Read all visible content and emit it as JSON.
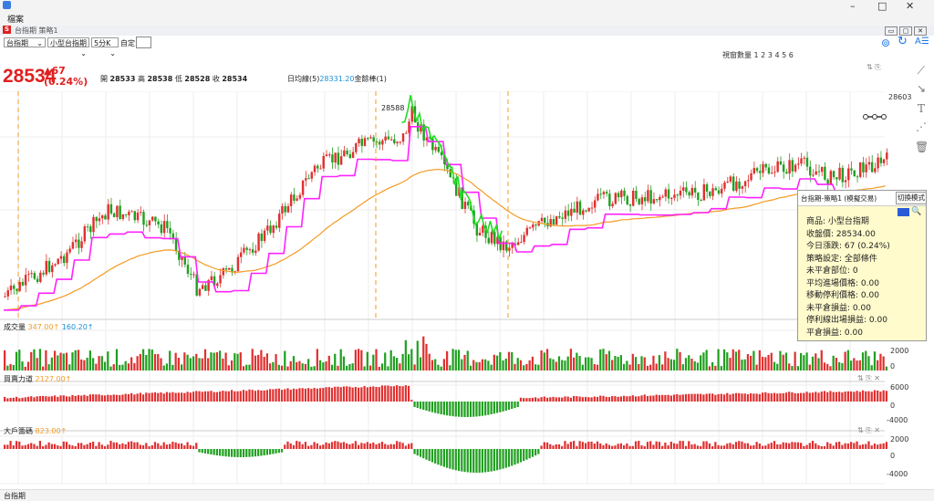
{
  "window": {
    "menu_label": "檔案",
    "doc_title": "台指期 策略1",
    "minimize": "–",
    "maximize": "□",
    "close": "✕"
  },
  "toolbar": {
    "product_select": "台指期",
    "contract_select": "小型台指期",
    "period_select": "5分K",
    "custom_label": "自定:",
    "window_count_label": "視窗數量 1 2 3 4 5 6"
  },
  "quote": {
    "last": "28534",
    "change": "▲67",
    "change_pct": "(0.24%)",
    "open_label": "開",
    "open": "28533",
    "high_label": "高",
    "high": "28538",
    "low_label": "低",
    "low": "28528",
    "close_label": "收",
    "close": "28534",
    "ma_text": "日均線(5)",
    "ma_value": "28331.20",
    "ma_tail": "金餘棒(1)"
  },
  "main_chart": {
    "price_top_label": "28603",
    "high_marker": "28588",
    "up_color": "#e03030",
    "down_color": "#20a020",
    "magenta_line": "#ff22ff",
    "green_line": "#22dd22",
    "orange_line": "#f59a23"
  },
  "volume_panel": {
    "label": "成交量",
    "value1": "347.00↑",
    "value2": "160.20↑",
    "axis_top": "2000",
    "axis_zero": "0"
  },
  "power_panel": {
    "label": "買賣力道",
    "value": "2127.00↑",
    "axis_top": "6000",
    "axis_zero": "0",
    "axis_bottom": "-4000"
  },
  "big_panel": {
    "label": "大戶籌碼",
    "value": "823.00↑",
    "axis_top": "2000",
    "axis_zero": "0",
    "axis_bottom": "-4000"
  },
  "info_panel": {
    "title": "台指期-策略1 (模擬交易)",
    "switch_button": "切換模式",
    "lines": [
      "商品: 小型台指期",
      "收盤價: 28534.00",
      "今日漲跌: 67 (0.24%)",
      "策略設定: 全部條件",
      "未平倉部位: 0",
      "平均進場價格: 0.00",
      "移動停利價格: 0.00",
      "未平倉損益: 0.00",
      "停利線出場損益: 0.00",
      "平倉損益: 0.00"
    ]
  },
  "status": {
    "text": "台指期"
  }
}
